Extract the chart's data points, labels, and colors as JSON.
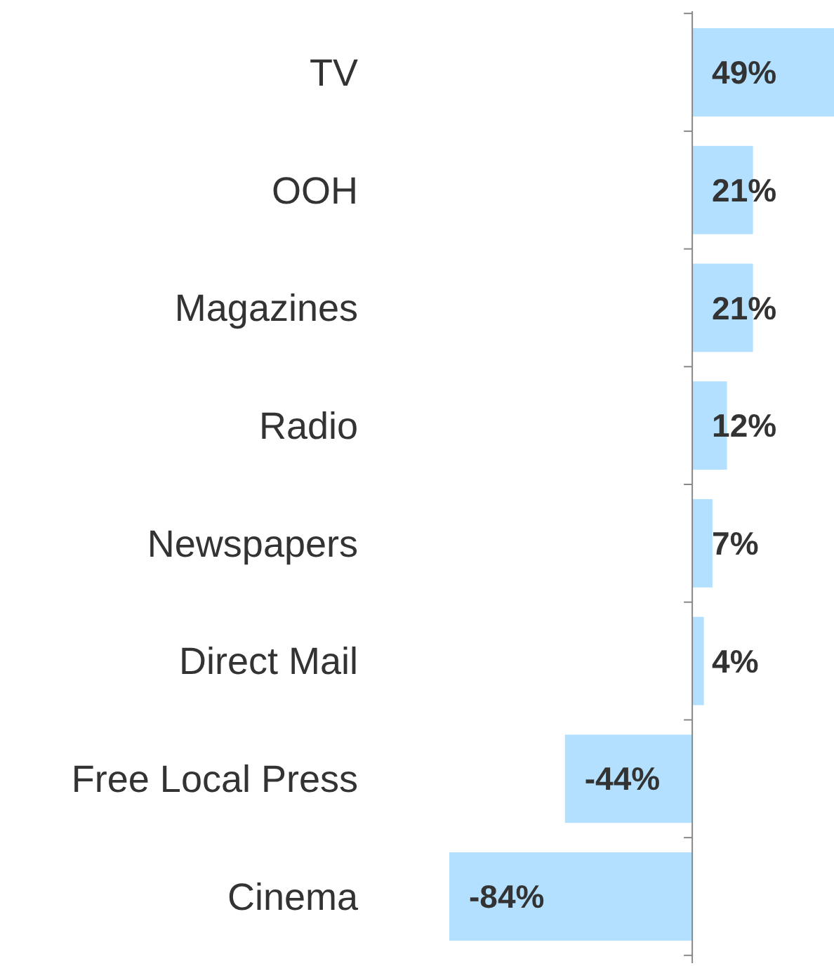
{
  "chart_data": {
    "type": "bar",
    "orientation": "horizontal",
    "categories": [
      "TV",
      "OOH",
      "Magazines",
      "Radio",
      "Newspapers",
      "Direct Mail",
      "Free Local Press",
      "Cinema"
    ],
    "values": [
      49,
      21,
      21,
      12,
      7,
      4,
      -44,
      -84
    ],
    "color": "#b3e0ff",
    "data_labels": true,
    "value_labels": [
      "49%",
      "21%",
      "21%",
      "12%",
      "7%",
      "4%",
      "-44%",
      "-84%"
    ]
  }
}
